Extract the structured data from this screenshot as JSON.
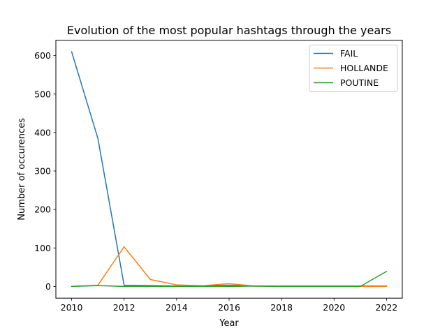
{
  "chart_data": {
    "type": "line",
    "title": "Evolution of the most popular hashtags through the years",
    "xlabel": "Year",
    "ylabel": "Number of occurences",
    "x": [
      2010,
      2011,
      2012,
      2013,
      2014,
      2015,
      2016,
      2017,
      2018,
      2019,
      2020,
      2021,
      2022
    ],
    "xlim": [
      2009.4,
      2022.6
    ],
    "ylim": [
      -30.5,
      640
    ],
    "xticks": [
      2010,
      2012,
      2014,
      2016,
      2018,
      2020,
      2022
    ],
    "yticks": [
      0,
      100,
      200,
      300,
      400,
      500,
      600
    ],
    "grid": false,
    "legend_position": "upper right",
    "series": [
      {
        "name": "FAIL",
        "color": "#1f77b4",
        "values": [
          610,
          385,
          3,
          2,
          1,
          1,
          3,
          1,
          1,
          1,
          1,
          1,
          1
        ]
      },
      {
        "name": "HOLLANDE",
        "color": "#ff7f0e",
        "values": [
          0,
          3,
          103,
          18,
          4,
          2,
          7,
          1,
          0,
          0,
          0,
          0,
          0
        ]
      },
      {
        "name": "POUTINE",
        "color": "#2ca02c",
        "values": [
          0,
          2,
          0,
          0,
          0,
          0,
          0,
          1,
          0,
          0,
          0,
          0,
          39
        ]
      }
    ]
  }
}
